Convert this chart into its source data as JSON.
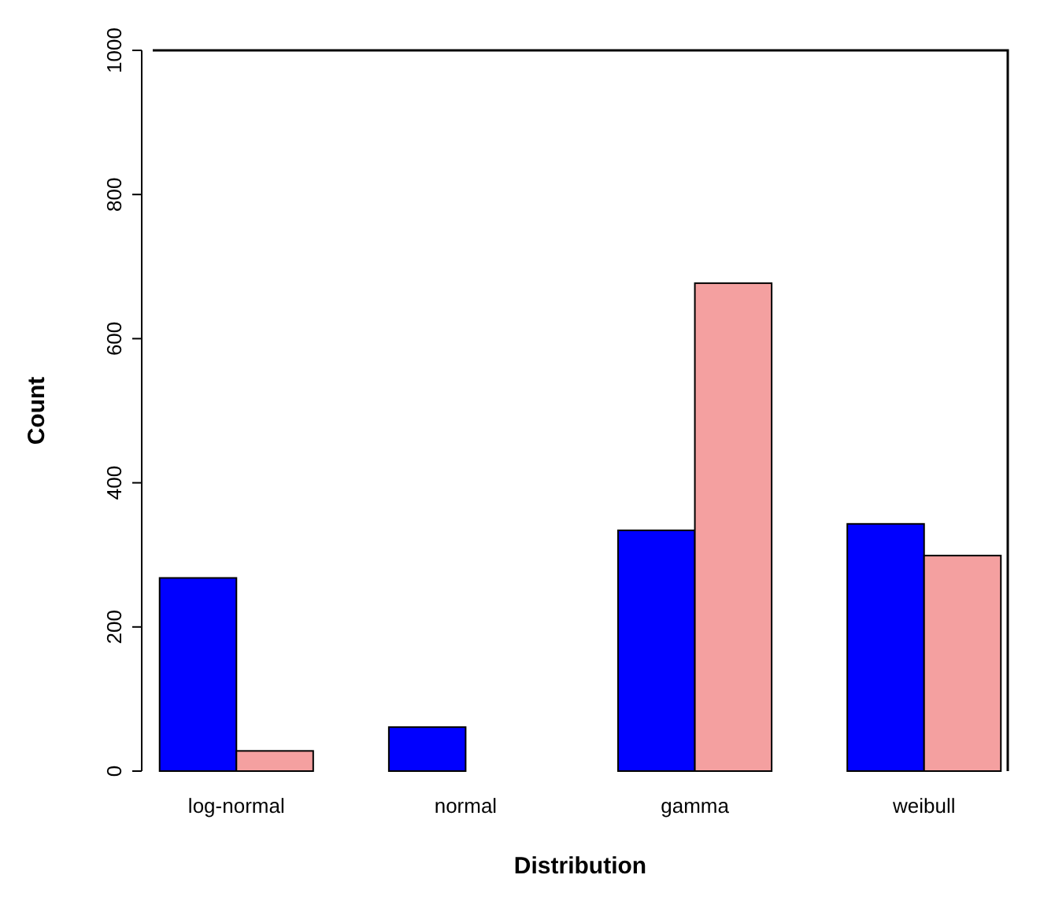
{
  "chart_data": {
    "type": "bar",
    "xlabel": "Distribution",
    "ylabel": "Count",
    "categories": [
      "log-normal",
      "normal",
      "gamma",
      "weibull"
    ],
    "series": [
      {
        "color": "#0000ff",
        "values": [
          268,
          61,
          334,
          343
        ]
      },
      {
        "color": "#f4a0a0",
        "values": [
          28,
          0,
          677,
          299
        ]
      }
    ],
    "ylim": [
      0,
      1000
    ],
    "yticks": [
      0,
      200,
      400,
      600,
      800,
      1000
    ]
  }
}
